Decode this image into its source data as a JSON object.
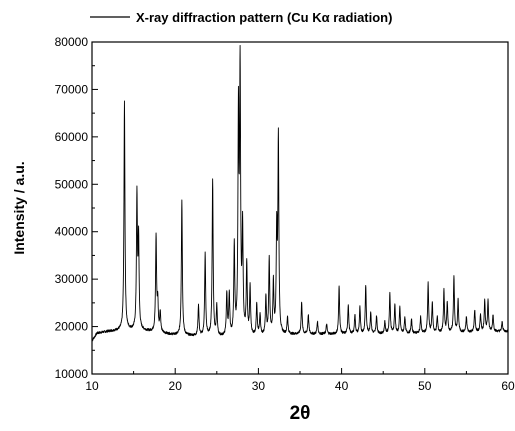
{
  "chart_data": {
    "type": "line",
    "title": "",
    "xlabel": "2θ",
    "ylabel": "Intensity / a.u.",
    "xlim": [
      10,
      60
    ],
    "ylim": [
      10000,
      80000
    ],
    "x_ticks": [
      "10",
      "20",
      "30",
      "40",
      "50",
      "60"
    ],
    "y_ticks": [
      "10000",
      "20000",
      "30000",
      "40000",
      "50000",
      "60000",
      "70000",
      "80000"
    ],
    "grid": false,
    "legend_position": "top",
    "series": [
      {
        "name": "X-ray diffraction pattern (Cu Kα radiation)",
        "color": "#000000",
        "baseline": [
          [
            10.0,
            17000
          ],
          [
            10.6,
            18600
          ],
          [
            12.0,
            19000
          ],
          [
            14.0,
            19300
          ],
          [
            16.0,
            19200
          ],
          [
            20.0,
            18200
          ],
          [
            25.0,
            17800
          ],
          [
            30.0,
            18000
          ],
          [
            35.0,
            18400
          ],
          [
            40.0,
            18400
          ],
          [
            45.0,
            18500
          ],
          [
            50.0,
            18600
          ],
          [
            55.0,
            18800
          ],
          [
            60.0,
            19000
          ]
        ],
        "peaks": [
          [
            13.9,
            67200
          ],
          [
            15.4,
            47300
          ],
          [
            15.6,
            38000
          ],
          [
            17.7,
            39000
          ],
          [
            17.9,
            25000
          ],
          [
            18.2,
            23000
          ],
          [
            20.8,
            46700
          ],
          [
            22.8,
            24500
          ],
          [
            23.6,
            35200
          ],
          [
            24.5,
            51000
          ],
          [
            25.0,
            24000
          ],
          [
            26.2,
            26800
          ],
          [
            26.5,
            26500
          ],
          [
            27.1,
            36500
          ],
          [
            27.6,
            63500
          ],
          [
            27.8,
            72700
          ],
          [
            28.1,
            40000
          ],
          [
            28.6,
            33000
          ],
          [
            29.0,
            28000
          ],
          [
            29.8,
            24500
          ],
          [
            30.2,
            22500
          ],
          [
            30.9,
            26000
          ],
          [
            31.3,
            34300
          ],
          [
            31.8,
            29000
          ],
          [
            32.2,
            39500
          ],
          [
            32.4,
            59200
          ],
          [
            33.5,
            22000
          ],
          [
            35.2,
            25200
          ],
          [
            36.0,
            22500
          ],
          [
            37.1,
            21000
          ],
          [
            38.2,
            20500
          ],
          [
            39.7,
            28500
          ],
          [
            40.8,
            24600
          ],
          [
            41.6,
            22500
          ],
          [
            42.2,
            24000
          ],
          [
            42.9,
            28700
          ],
          [
            43.5,
            23000
          ],
          [
            44.2,
            22200
          ],
          [
            45.2,
            21000
          ],
          [
            45.8,
            27000
          ],
          [
            46.4,
            24600
          ],
          [
            47.0,
            24000
          ],
          [
            47.6,
            22000
          ],
          [
            48.4,
            21500
          ],
          [
            49.5,
            22000
          ],
          [
            50.4,
            29000
          ],
          [
            50.9,
            25000
          ],
          [
            51.5,
            22000
          ],
          [
            52.3,
            27500
          ],
          [
            52.7,
            25000
          ],
          [
            53.5,
            30600
          ],
          [
            54.0,
            25500
          ],
          [
            55.0,
            22000
          ],
          [
            56.0,
            23500
          ],
          [
            56.7,
            22500
          ],
          [
            57.2,
            25500
          ],
          [
            57.6,
            25600
          ],
          [
            58.2,
            22500
          ],
          [
            59.3,
            21000
          ]
        ]
      }
    ]
  }
}
